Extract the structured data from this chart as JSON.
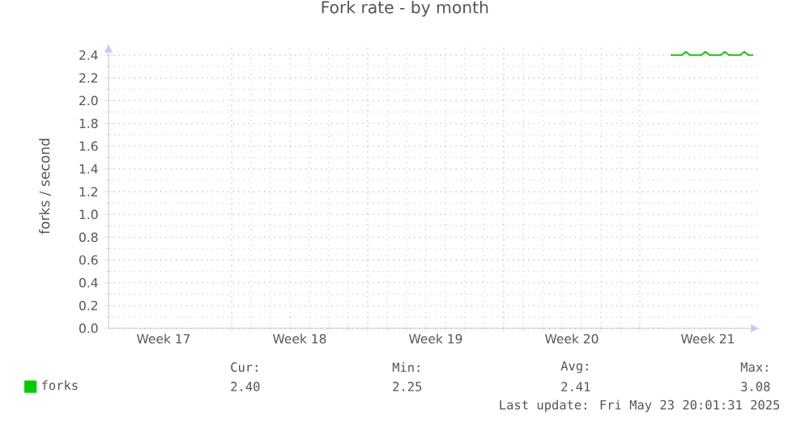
{
  "chart_data": {
    "type": "line",
    "title": "Fork rate - by month",
    "ylabel": "forks / second",
    "xlim": [
      "2025-04-20T16:00",
      "2025-05-24T04:00"
    ],
    "ylim": [
      0,
      2.5
    ],
    "xticks": [
      {
        "value": "2025-04-23T12:00",
        "label": "Week 17"
      },
      {
        "value": "2025-04-27",
        "label": null
      },
      {
        "value": "2025-04-30T12:00",
        "label": "Week 18"
      },
      {
        "value": "2025-05-04",
        "label": null
      },
      {
        "value": "2025-05-07T12:00",
        "label": "Week 19"
      },
      {
        "value": "2025-05-11",
        "label": null
      },
      {
        "value": "2025-05-14T12:00",
        "label": "Week 20"
      },
      {
        "value": "2025-05-18",
        "label": null
      },
      {
        "value": "2025-05-21T12:00",
        "label": "Week 21"
      }
    ],
    "yticks": [
      {
        "value": 0,
        "label": "0.0"
      },
      0.2,
      0.4,
      0.6,
      0.8,
      {
        "value": 1,
        "label": "1.0"
      },
      1.2,
      1.4,
      1.6,
      1.8,
      {
        "value": 2,
        "label": "2.0"
      },
      2.2,
      2.4
    ],
    "grid": true,
    "legend": "bottom left",
    "series": [
      {
        "name": "forks",
        "color": "#00cc00",
        "x": [
          "2025-05-19T14:00",
          "2025-05-20T04:00",
          "2025-05-20T09:00",
          "2025-05-20T14:00",
          "2025-05-21T04:00",
          "2025-05-21T09:00",
          "2025-05-21T14:00",
          "2025-05-22T04:00",
          "2025-05-22T09:00",
          "2025-05-22T14:00",
          "2025-05-23T04:00",
          "2025-05-23T09:00",
          "2025-05-23T14:00",
          "2025-05-23T20:00"
        ],
        "values": [
          2.4,
          2.4,
          2.43,
          2.4,
          2.4,
          2.43,
          2.4,
          2.4,
          2.43,
          2.4,
          2.4,
          2.43,
          2.4,
          2.4
        ]
      }
    ],
    "annotations": [
      "Cur:",
      "2.40",
      "Min:",
      "2.25",
      "Avg:",
      "2.41",
      "Max:",
      "3.08",
      "Last update: Fri May 23 20:01:31 2025"
    ]
  }
}
